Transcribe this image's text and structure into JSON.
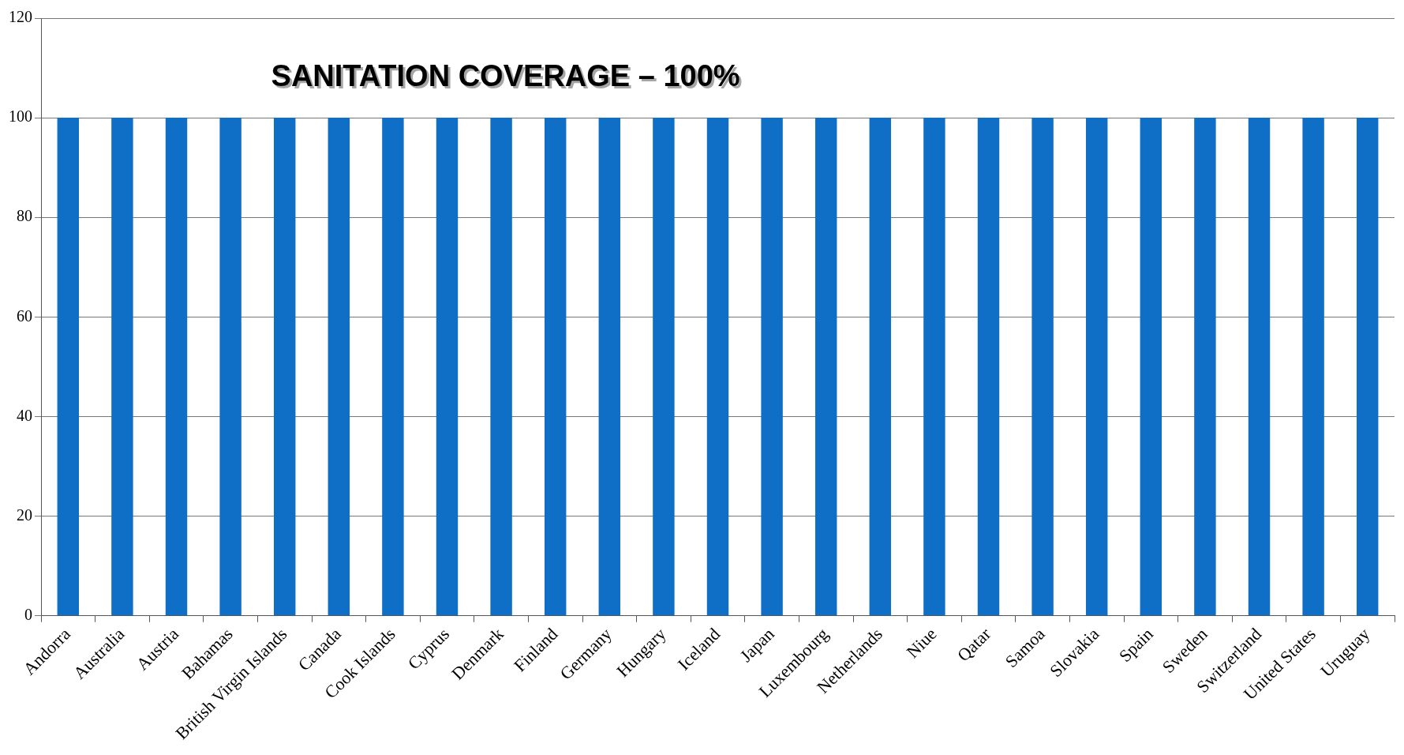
{
  "chart_data": {
    "type": "bar",
    "title": "SANITATION COVERAGE – 100%",
    "categories": [
      "Andorra",
      "Australia",
      "Austria",
      "Bahamas",
      "British Virgin Islands",
      "Canada",
      "Cook Islands",
      "Cyprus",
      "Denmark",
      "Finland",
      "Germany",
      "Hungary",
      "Iceland",
      "Japan",
      "Luxembourg",
      "Netherlands",
      "Niue",
      "Qatar",
      "Samoa",
      "Slovakia",
      "Spain",
      "Sweden",
      "Switzerland",
      "United States",
      "Uruguay"
    ],
    "values": [
      100,
      100,
      100,
      100,
      100,
      100,
      100,
      100,
      100,
      100,
      100,
      100,
      100,
      100,
      100,
      100,
      100,
      100,
      100,
      100,
      100,
      100,
      100,
      100,
      100
    ],
    "color": "#0f6fc6",
    "ylim": [
      0,
      120
    ],
    "yticks": [
      0,
      20,
      40,
      60,
      80,
      100,
      120
    ],
    "grid": "y",
    "legend": false
  }
}
